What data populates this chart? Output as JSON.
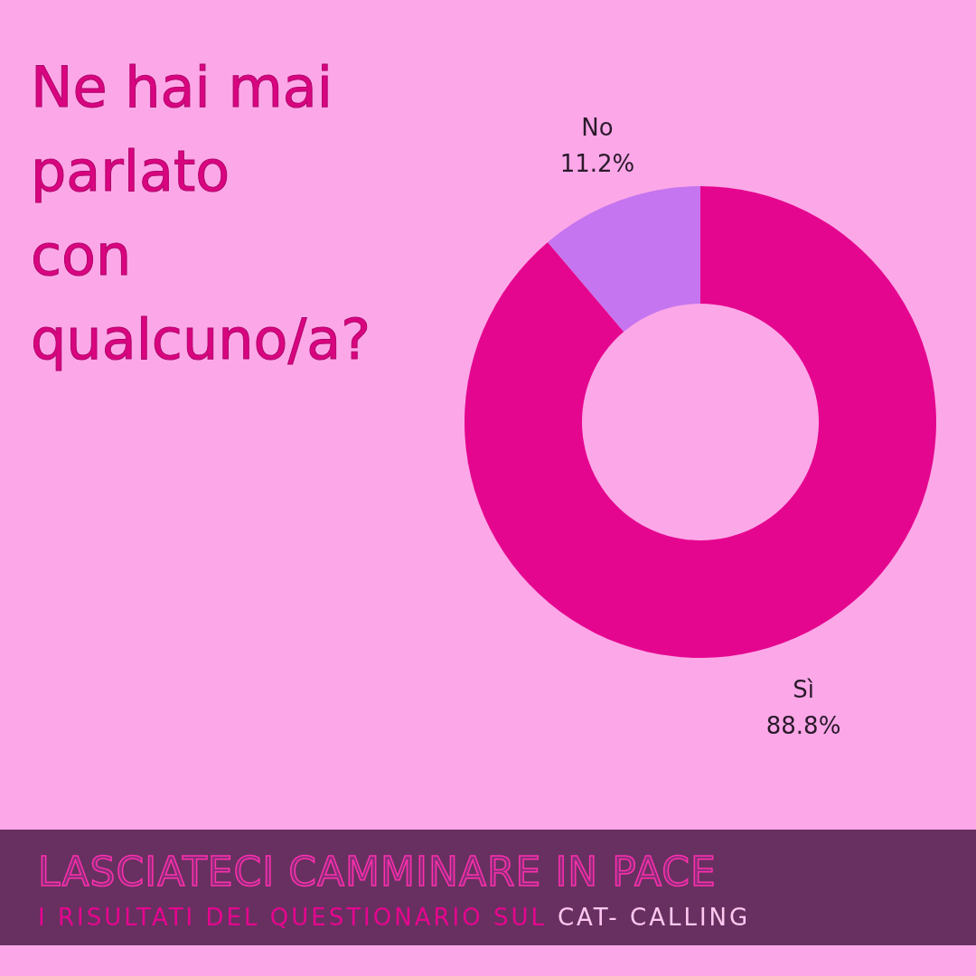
{
  "chart_data": {
    "type": "donut",
    "title": "Ne hai mai parlato con qualcuno/a?",
    "subtitle": "LASCIATECI CAMMINARE IN PACE",
    "annotations": [
      "I RISULTATI DEL QUESTIONARIO SUL",
      "CAT- CALLING"
    ],
    "categories": [
      "Sì",
      "No"
    ],
    "values": [
      88.8,
      11.2
    ],
    "colors": [
      "#e5068f",
      "#c575ef"
    ],
    "value_labels": [
      "88.8%",
      "11.2%"
    ]
  }
}
